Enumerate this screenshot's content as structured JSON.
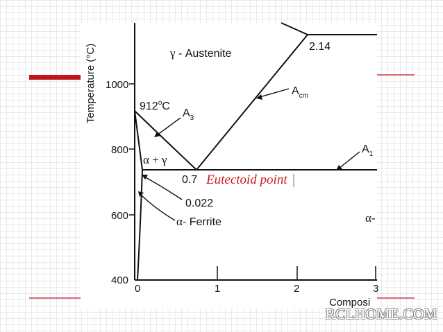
{
  "axes": {
    "y_title": "Temperature (°C)",
    "x_title": "Composi",
    "y_ticks": [
      "1000",
      "800",
      "600",
      "400"
    ],
    "x_ticks": [
      "0",
      "1",
      "2",
      "3"
    ]
  },
  "regions": {
    "austenite_greek": "γ",
    "austenite_name": " - Austenite",
    "alpha_gamma_a": "α",
    "alpha_gamma_plus": " + ",
    "alpha_gamma_g": "γ",
    "ferrite_greek": "α",
    "ferrite_name": "- Ferrite",
    "right_alpha": "α-"
  },
  "annotations": {
    "t912": "912",
    "t912_deg": "o",
    "t912_unit": "C",
    "a3_main": "A",
    "a3_sub": "3",
    "acm_main": "A",
    "acm_sub": "cm",
    "a1_main": "A",
    "a1_sub": "1",
    "c214": "2.14",
    "c07": "0.7",
    "c0022": "0.022",
    "eutectoid": "Eutectoid point"
  },
  "watermark": "RCLHOME.COM",
  "colors": {
    "accent_red": "#c0161c",
    "eutectoid_red": "#d0141a",
    "line": "#111111"
  }
}
